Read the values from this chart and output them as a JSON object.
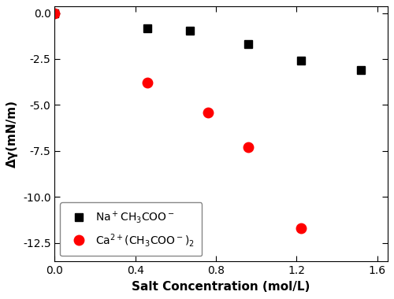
{
  "na_x": [
    0.0,
    0.46,
    0.67,
    0.96,
    1.22,
    1.52
  ],
  "na_y": [
    0.0,
    -0.85,
    -0.95,
    -1.7,
    -2.6,
    -3.1
  ],
  "ca_x": [
    0.0,
    0.46,
    0.76,
    0.96,
    1.22
  ],
  "ca_y": [
    0.0,
    -3.8,
    -5.4,
    -7.3,
    -11.7
  ],
  "na_color": "#000000",
  "ca_color": "#ff0000",
  "xlabel": "Salt Concentration (mol/L)",
  "ylabel": "Δγ(mN/m)",
  "xlim": [
    0.0,
    1.65
  ],
  "ylim": [
    -13.5,
    0.35
  ],
  "xticks": [
    0.0,
    0.4,
    0.8,
    1.2,
    1.6
  ],
  "yticks": [
    0.0,
    -2.5,
    -5.0,
    -7.5,
    -10.0,
    -12.5
  ],
  "xtick_labels": [
    "0.0",
    "0.4",
    "0.8",
    "1.2",
    "1.6"
  ],
  "ytick_labels": [
    "0.0",
    "-2.5",
    "-5.0",
    "-7.5",
    "-10.0",
    "-12.5"
  ],
  "bg_color": "#ffffff",
  "marker_size_sq": 7,
  "marker_size_circ": 9,
  "legend_fontsize": 10,
  "tick_fontsize": 10,
  "label_fontsize": 11,
  "top_bar_color": "#a0a0a0"
}
